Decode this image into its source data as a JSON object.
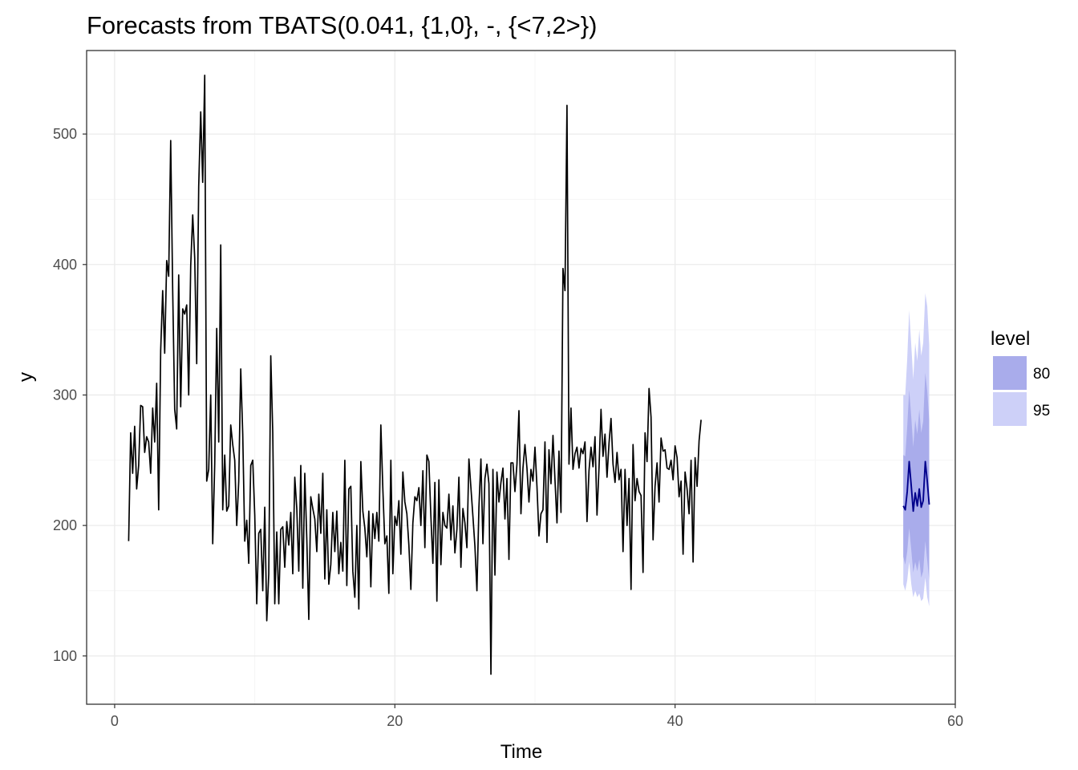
{
  "chart_data": {
    "type": "line",
    "title": "Forecasts from TBATS(0.041, {1,0}, -, {<7,2>})",
    "xlabel": "Time",
    "ylabel": "y",
    "xlim": [
      -2,
      60
    ],
    "ylim": [
      63,
      564
    ],
    "x_ticks": [
      0,
      20,
      40,
      60
    ],
    "x_tick_labels": [
      "0",
      "20",
      "40",
      "60"
    ],
    "y_ticks": [
      100,
      200,
      300,
      400,
      500
    ],
    "y_tick_labels": [
      "100",
      "200",
      "300",
      "400",
      "500"
    ],
    "grid": true,
    "legend": {
      "title": "level",
      "position": "right",
      "entries": [
        {
          "label": "80",
          "color": "#a9aceb"
        },
        {
          "label": "95",
          "color": "#cdd0f8"
        }
      ]
    },
    "colors": {
      "history": "#000000",
      "forecast": "#00008b",
      "interval_80": "#a9aceb",
      "interval_95": "#cdd0f8",
      "grid_major": "#ebebeb",
      "grid_minor": "#f5f5f5",
      "panel_border": "#333333"
    },
    "series": [
      {
        "kind": "history",
        "x_start": 1.0,
        "x_step": 0.142857,
        "values": [
          188,
          271,
          240,
          276,
          228,
          246,
          292,
          291,
          256,
          268,
          264,
          240,
          290,
          264,
          309,
          212,
          334,
          380,
          332,
          403,
          391,
          495,
          380,
          289,
          274,
          392,
          291,
          366,
          362,
          369,
          300,
          399,
          438,
          405,
          324,
          460,
          517,
          463,
          545,
          234,
          243,
          300,
          186,
          247,
          351,
          264,
          415,
          212,
          254,
          211,
          215,
          277,
          262,
          250,
          200,
          234,
          320,
          270,
          188,
          204,
          171,
          246,
          250,
          208,
          140,
          194,
          197,
          150,
          214,
          127,
          163,
          330,
          271,
          140,
          195,
          140,
          197,
          199,
          168,
          203,
          185,
          210,
          163,
          237,
          213,
          165,
          246,
          152,
          240,
          190,
          128,
          222,
          213,
          205,
          180,
          224,
          194,
          240,
          159,
          212,
          155,
          170,
          210,
          180,
          211,
          163,
          187,
          165,
          250,
          154,
          228,
          230,
          165,
          145,
          200,
          136,
          249,
          211,
          198,
          176,
          211,
          153,
          209,
          190,
          210,
          188,
          277,
          228,
          186,
          192,
          148,
          250,
          163,
          207,
          200,
          219,
          178,
          241,
          218,
          209,
          185,
          151,
          202,
          222,
          219,
          229,
          200,
          242,
          183,
          254,
          249,
          207,
          171,
          233,
          142,
          235,
          170,
          210,
          200,
          198,
          224,
          189,
          215,
          179,
          197,
          237,
          168,
          213,
          202,
          183,
          251,
          229,
          207,
          184,
          150,
          214,
          251,
          186,
          236,
          247,
          232,
          86,
          243,
          162,
          241,
          218,
          233,
          244,
          205,
          236,
          174,
          248,
          248,
          226,
          247,
          288,
          209,
          244,
          262,
          244,
          218,
          243,
          234,
          260,
          230,
          192,
          209,
          212,
          264,
          187,
          258,
          232,
          269,
          235,
          202,
          257,
          210,
          397,
          380,
          522,
          247,
          290,
          243,
          255,
          260,
          244,
          259,
          255,
          264,
          203,
          242,
          260,
          245,
          268,
          208,
          244,
          289,
          253,
          270,
          237,
          263,
          282,
          247,
          233,
          256,
          235,
          243,
          180,
          243,
          200,
          236,
          151,
          262,
          219,
          236,
          226,
          223,
          164,
          271,
          249,
          305,
          283,
          189,
          230,
          248,
          218,
          267,
          257,
          258,
          244,
          243,
          250,
          235,
          261,
          252,
          222,
          234,
          178,
          241,
          228,
          209,
          250,
          172,
          252,
          230,
          265,
          281
        ]
      },
      {
        "kind": "forecast",
        "x": [
          56.29,
          56.43,
          56.57,
          56.71,
          56.86,
          57.0,
          57.14,
          57.29,
          57.43,
          57.57,
          57.71,
          57.86,
          58.0,
          58.14
        ],
        "mean": [
          215,
          212,
          226,
          249,
          230,
          211,
          225,
          215,
          228,
          214,
          219,
          249,
          234,
          216
        ],
        "lo80": [
          176,
          170,
          180,
          198,
          181,
          164,
          172,
          165,
          174,
          160,
          165,
          188,
          173,
          158
        ],
        "hi80": [
          254,
          253,
          276,
          304,
          283,
          260,
          281,
          270,
          289,
          271,
          280,
          317,
          303,
          281
        ],
        "lo95": [
          155,
          150,
          158,
          172,
          155,
          145,
          150,
          145,
          148,
          142,
          144,
          160,
          145,
          138
        ],
        "hi95": [
          300,
          300,
          328,
          365,
          338,
          312,
          340,
          326,
          350,
          330,
          340,
          378,
          368,
          338
        ]
      }
    ]
  }
}
